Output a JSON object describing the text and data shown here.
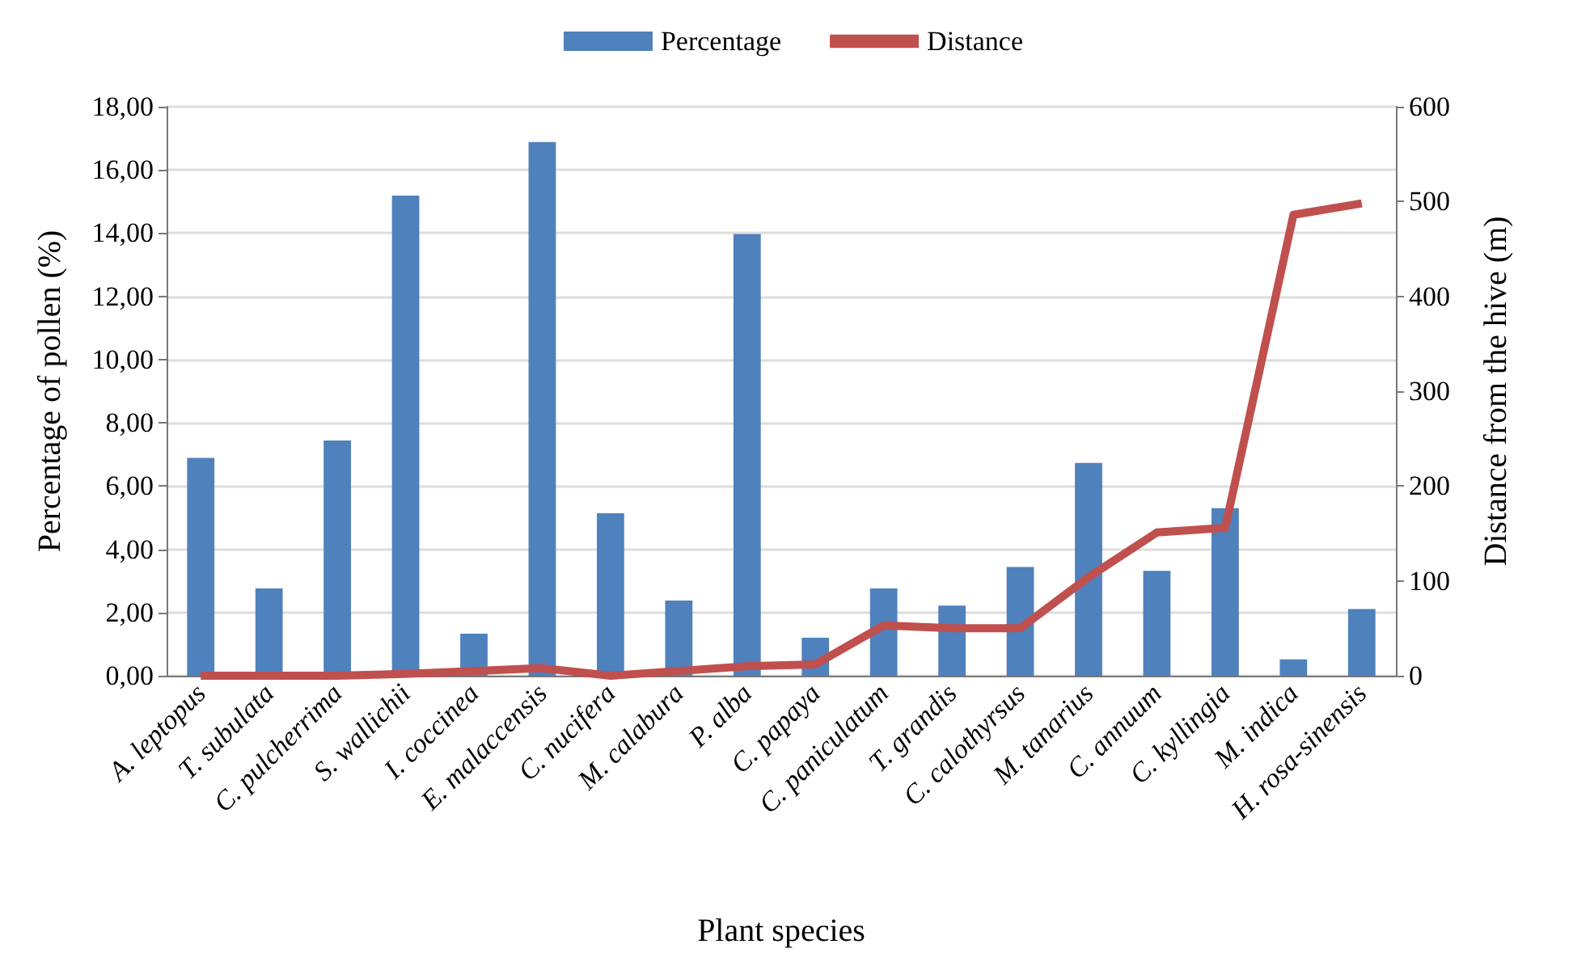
{
  "chart_data": {
    "type": "bar",
    "xlabel": "Plant species",
    "ylabel": "Percentage of pollen (%)",
    "y2label": "Distance from the hive (m)",
    "categories": [
      "A. leptopus",
      "T. subulata",
      "C. pulcherrima",
      "S. wallichii",
      "I. coccinea",
      "E. malaccensis",
      "C. nucifera",
      "M. calabura",
      "P. alba",
      "C. papaya",
      "C. paniculatum",
      "T. grandis",
      "C. calothyrsus",
      "M. tanarius",
      "C. annuum",
      "C. kyllingia",
      "M. indica",
      "H. rosa-sinensis"
    ],
    "series": [
      {
        "name": "Percentage",
        "color": "#4f81bd",
        "values": [
          6.89,
          2.76,
          7.44,
          15.19,
          1.33,
          16.88,
          5.14,
          2.38,
          13.97,
          1.2,
          2.76,
          2.22,
          3.44,
          6.73,
          3.32,
          5.3,
          0.52,
          2.11
        ]
      },
      {
        "name": "Distance",
        "type": "line",
        "axis": "y2",
        "color": "#c0504d",
        "values": [
          0,
          0,
          0,
          2,
          5,
          8,
          0,
          5,
          10,
          12,
          53,
          50,
          50,
          104,
          151,
          156,
          486,
          498
        ]
      }
    ],
    "ylim": [
      0,
      18
    ],
    "yticks": [
      {
        "value": 0,
        "label": "0,00"
      },
      {
        "value": 2,
        "label": "2,00"
      },
      {
        "value": 4,
        "label": "4,00"
      },
      {
        "value": 6,
        "label": "6,00"
      },
      {
        "value": 8,
        "label": "8,00"
      },
      {
        "value": 10,
        "label": "10,00"
      },
      {
        "value": 12,
        "label": "12,00"
      },
      {
        "value": 14,
        "label": "14,00"
      },
      {
        "value": 16,
        "label": "16,00"
      },
      {
        "value": 18,
        "label": "18,00"
      }
    ],
    "y2lim": [
      0,
      600
    ],
    "y2ticks": [
      0,
      100,
      200,
      300,
      400,
      500,
      600
    ],
    "grid": "y",
    "legend": "top",
    "marker": "none",
    "line_style": "solid"
  }
}
